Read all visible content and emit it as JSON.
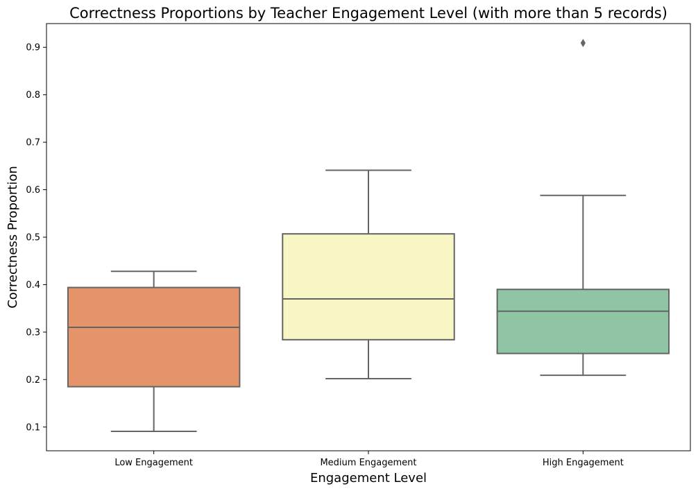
{
  "chart_data": {
    "type": "box",
    "title": "Correctness Proportions by Teacher Engagement Level (with more than 5 records)",
    "xlabel": "Engagement Level",
    "ylabel": "Correctness Proportion",
    "ylim": [
      0.05,
      0.95
    ],
    "yticks": [
      "0.1",
      "0.2",
      "0.3",
      "0.4",
      "0.5",
      "0.6",
      "0.7",
      "0.8",
      "0.9"
    ],
    "grid": false,
    "categories": [
      "Low Engagement",
      "Medium Engagement",
      "High Engagement"
    ],
    "boxes": [
      {
        "category": "Low Engagement",
        "whisker_low": 0.091,
        "q1": 0.185,
        "median": 0.31,
        "q3": 0.394,
        "whisker_high": 0.428,
        "outliers": [],
        "color": "#e5946a"
      },
      {
        "category": "Medium Engagement",
        "whisker_low": 0.202,
        "q1": 0.284,
        "median": 0.37,
        "q3": 0.507,
        "whisker_high": 0.641,
        "outliers": [],
        "color": "#f7f6c4"
      },
      {
        "category": "High Engagement",
        "whisker_low": 0.209,
        "q1": 0.255,
        "median": 0.344,
        "q3": 0.39,
        "whisker_high": 0.588,
        "outliers": [
          0.909
        ],
        "color": "#8fc5a5"
      }
    ],
    "line_color": "#646464"
  }
}
